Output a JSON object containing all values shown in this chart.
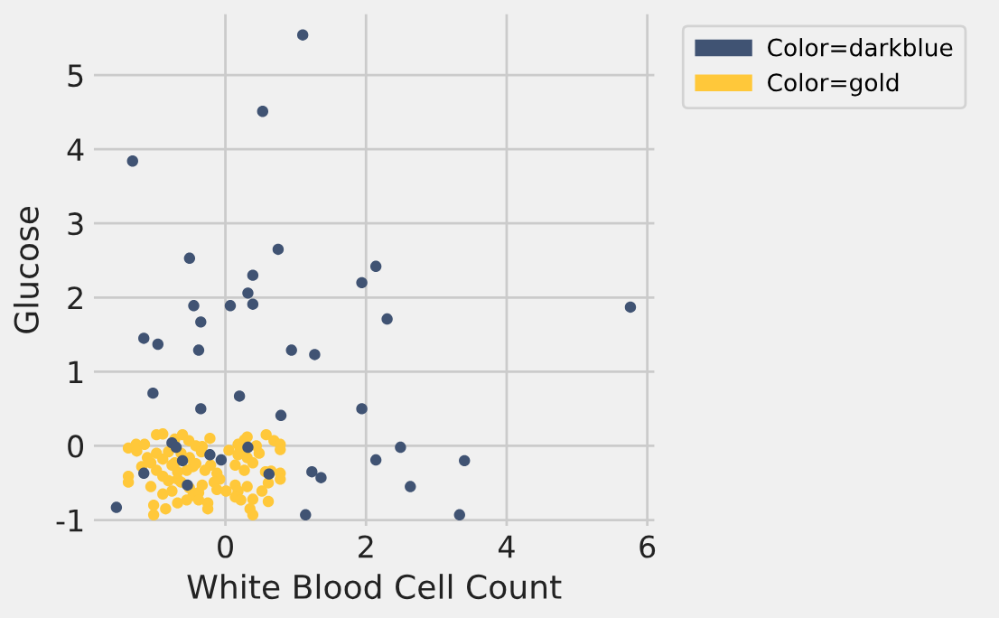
{
  "chart_data": {
    "type": "scatter",
    "xlabel": "White Blood Cell Count",
    "ylabel": "Glucose",
    "xlim": [
      -1.87,
      6.1
    ],
    "ylim": [
      -1.08,
      5.82
    ],
    "xticks": [
      0,
      2,
      4,
      6
    ],
    "yticks": [
      -1,
      0,
      1,
      2,
      3,
      4,
      5
    ],
    "grid": true,
    "legend": "top right",
    "marker": "circle",
    "series": [
      {
        "name": "Color=darkblue",
        "color": "#405373",
        "x": [
          1.1,
          0.53,
          -1.32,
          -0.51,
          0.75,
          0.39,
          2.14,
          1.94,
          0.32,
          0.39,
          -0.45,
          0.07,
          5.76,
          2.3,
          -0.35,
          -1.16,
          -0.96,
          -0.38,
          0.94,
          1.27,
          -1.03,
          0.2,
          -0.35,
          1.94,
          0.79,
          -0.76,
          -0.7,
          0.32,
          2.49,
          -0.61,
          -0.22,
          -0.06,
          2.14,
          3.4,
          -1.16,
          0.62,
          1.23,
          1.36,
          -0.54,
          2.63,
          -1.55,
          1.14,
          3.33
        ],
        "values": [
          5.54,
          4.51,
          3.84,
          2.53,
          2.65,
          2.3,
          2.42,
          2.2,
          2.06,
          1.91,
          1.89,
          1.89,
          1.87,
          1.71,
          1.67,
          1.45,
          1.37,
          1.29,
          1.29,
          1.23,
          0.71,
          0.67,
          0.5,
          0.5,
          0.41,
          0.04,
          -0.02,
          -0.02,
          -0.02,
          -0.2,
          -0.12,
          -0.19,
          -0.19,
          -0.2,
          -0.37,
          -0.38,
          -0.35,
          -0.43,
          -0.53,
          -0.55,
          -0.83,
          -0.93,
          -0.93
        ]
      },
      {
        "name": "Color=gold",
        "color": "#ffc83a",
        "x": [
          -1.38,
          -1.27,
          -1.15,
          -1.26,
          -0.98,
          -0.89,
          -0.72,
          -0.61,
          -0.52,
          -0.42,
          -0.33,
          -0.22,
          -0.34,
          -0.63,
          -0.81,
          -0.98,
          0.18,
          0.27,
          0.31,
          0.21,
          0.58,
          0.69,
          0.78,
          0.78,
          0.44,
          0.05,
          0.48,
          -1.11,
          -1.06,
          -0.89,
          -0.72,
          -0.51,
          -0.46,
          -0.55,
          -0.42,
          -0.68,
          -0.76,
          -0.21,
          -0.12,
          -0.29,
          0.18,
          0.31,
          0.39,
          0.27,
          0.14,
          0.57,
          0.78,
          0.78,
          0.65,
          -1.38,
          -1.38,
          -1.19,
          -0.98,
          -0.89,
          -0.68,
          -1.06,
          -0.81,
          -0.63,
          -0.51,
          -0.33,
          -0.08,
          -0.16,
          -0.89,
          -0.76,
          -0.46,
          -0.38,
          -0.12,
          0.01,
          0.14,
          0.18,
          0.31,
          0.52,
          0.61,
          0.14,
          0.22,
          0.39,
          0.61,
          -1.02,
          -0.85,
          -0.68,
          -0.55,
          -0.25,
          -0.25,
          0.35,
          0.39,
          -1.02,
          -0.38
        ],
        "values": [
          -0.03,
          0.02,
          0.02,
          -0.07,
          0.15,
          0.16,
          0.09,
          0.15,
          0.07,
          0.0,
          -0.01,
          0.1,
          -0.08,
          -0.1,
          -0.08,
          -0.1,
          0.02,
          0.08,
          0.12,
          -0.07,
          0.15,
          0.07,
          0.02,
          -0.05,
          0.0,
          -0.06,
          -0.1,
          -0.16,
          -0.23,
          -0.18,
          -0.23,
          -0.16,
          -0.28,
          -0.33,
          -0.24,
          -0.35,
          -0.26,
          -0.26,
          -0.37,
          -0.33,
          -0.12,
          -0.16,
          -0.23,
          -0.33,
          -0.26,
          -0.35,
          -0.37,
          -0.45,
          -0.34,
          -0.41,
          -0.49,
          -0.28,
          -0.33,
          -0.41,
          -0.45,
          -0.55,
          -0.47,
          -0.49,
          -0.57,
          -0.53,
          -0.45,
          -0.49,
          -0.65,
          -0.61,
          -0.67,
          -0.63,
          -0.59,
          -0.61,
          -0.53,
          -0.61,
          -0.55,
          -0.61,
          -0.5,
          -0.69,
          -0.73,
          -0.72,
          -0.75,
          -0.8,
          -0.85,
          -0.77,
          -0.73,
          -0.77,
          -0.85,
          -0.85,
          -0.93,
          -0.93,
          -0.73
        ]
      }
    ]
  }
}
